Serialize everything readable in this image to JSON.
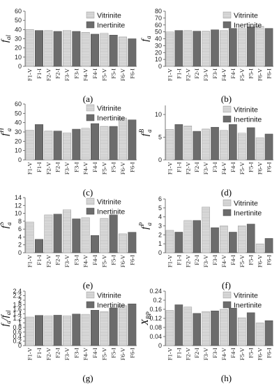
{
  "palette": {
    "vitrinite_fill": "#e3e3e3",
    "vitrinite_hatch": "#ababab",
    "inertinite_fill": "#6c6c6c",
    "axis": "#555555"
  },
  "legend_labels": [
    "Vitrinite",
    "Inertinite"
  ],
  "chart_data": [
    {
      "type": "bar",
      "panel_label": "(a)",
      "ylabel": {
        "main": "f",
        "sub": "al",
        "sup": ""
      },
      "categories": [
        "F1-V",
        "F1-I",
        "F2-V",
        "F2-I",
        "F3-V",
        "F3-I",
        "F4-V",
        "F4-I",
        "F5-V",
        "F5-I",
        "F6-V",
        "F6-I"
      ],
      "values": [
        40,
        39,
        39,
        38,
        39,
        38,
        37,
        35,
        36,
        34,
        32,
        30
      ],
      "ylim": [
        0,
        60
      ],
      "yticks": [
        0,
        10,
        20,
        30,
        40,
        50,
        60
      ],
      "ytick_labels": [
        "0",
        "10",
        "20",
        "30",
        "40",
        "50",
        "60"
      ],
      "series": [
        {
          "name": "Vitrinite"
        },
        {
          "name": "Inertinite"
        }
      ],
      "legend": "top-right",
      "grid": false
    },
    {
      "type": "bar",
      "panel_label": "(b)",
      "ylabel": {
        "main": "f",
        "sub": "a",
        "sup": ""
      },
      "categories": [
        "F1-V",
        "F1-I",
        "F2-V",
        "F2-I",
        "F3-V",
        "F3-I",
        "F4-V",
        "F4-I",
        "F5-V",
        "F5-I",
        "F6-V",
        "F6-I"
      ],
      "values": [
        50,
        52,
        52,
        51,
        51,
        53,
        52,
        55,
        55,
        57,
        58,
        55
      ],
      "ylim": [
        0,
        80
      ],
      "yticks": [
        0,
        10,
        20,
        30,
        40,
        50,
        60,
        70,
        80
      ],
      "ytick_labels": [
        "0",
        "10",
        "20",
        "30",
        "40",
        "50",
        "60",
        "70",
        "80"
      ],
      "series": [
        {
          "name": "Vitrinite"
        },
        {
          "name": "Inertinite"
        }
      ],
      "legend": "top-right",
      "grid": false
    },
    {
      "type": "bar",
      "panel_label": "(c)",
      "ylabel": {
        "main": "f",
        "sub": "a",
        "sup": "H"
      },
      "categories": [
        "F1-V",
        "F1-I",
        "F2-V",
        "F2-I",
        "F3-V",
        "F3-I",
        "F4-V",
        "F4-I",
        "F5-V",
        "F5-I",
        "F6-V",
        "F6-I"
      ],
      "values": [
        32,
        38,
        31,
        31,
        29,
        33,
        34,
        39,
        36,
        36,
        45,
        43
      ],
      "ylim": [
        0,
        60
      ],
      "yticks": [
        0,
        10,
        20,
        30,
        40,
        50,
        60
      ],
      "ytick_labels": [
        "0",
        "10",
        "20",
        "30",
        "40",
        "50",
        "60"
      ],
      "series": [
        {
          "name": "Vitrinite"
        },
        {
          "name": "Inertinite"
        }
      ],
      "legend": "top-right",
      "grid": false
    },
    {
      "type": "bar",
      "panel_label": "(d)",
      "ylabel": {
        "main": "f",
        "sub": "a",
        "sup": "B"
      },
      "categories": [
        "F1-V",
        "F1-I",
        "F2-V",
        "F2-I",
        "F3-V",
        "F3-I",
        "F4-V",
        "F4-I",
        "F5-V",
        "F5-I",
        "F6-V",
        "F6-I"
      ],
      "values": [
        6.7,
        7.8,
        7.5,
        6.3,
        6.8,
        7.2,
        6.5,
        7.8,
        5.9,
        7.1,
        4.9,
        5.7
      ],
      "ylim": [
        0,
        12
      ],
      "yticks": [
        0,
        5,
        10
      ],
      "ytick_labels": [
        "0",
        "5",
        "10"
      ],
      "series": [
        {
          "name": "Vitrinite"
        },
        {
          "name": "Inertinite"
        }
      ],
      "legend": "top-right",
      "grid": false
    },
    {
      "type": "bar",
      "panel_label": "(e)",
      "ylabel": {
        "main": "f",
        "sub": "a",
        "sup": "S"
      },
      "categories": [
        "F1-V",
        "F1-I",
        "F2-V",
        "F2-I",
        "F3-V",
        "F3-I",
        "F4-V",
        "F4-I",
        "F5-V",
        "F5-I",
        "F6-V",
        "F6-I"
      ],
      "values": [
        7.8,
        3.4,
        9.6,
        9.8,
        10.9,
        8.6,
        8.9,
        4.4,
        8.7,
        9.6,
        4.8,
        5.2
      ],
      "ylim": [
        0,
        14
      ],
      "yticks": [
        0,
        2,
        4,
        6,
        8,
        10,
        12,
        14
      ],
      "ytick_labels": [
        "0",
        "2",
        "4",
        "6",
        "8",
        "10",
        "12",
        "14"
      ],
      "series": [
        {
          "name": "Vitrinite"
        },
        {
          "name": "Inertinite"
        }
      ],
      "legend": "top-right",
      "grid": false
    },
    {
      "type": "bar",
      "panel_label": "(f)",
      "ylabel": {
        "main": "f",
        "sub": "a",
        "sup": "P"
      },
      "categories": [
        "F1-V",
        "F1-I",
        "F2-V",
        "F2-I",
        "F3-V",
        "F3-I",
        "F4-V",
        "F4-I",
        "F5-V",
        "F5-I",
        "F6-V",
        "F6-I"
      ],
      "values": [
        2.5,
        2.3,
        3.6,
        3.6,
        5.1,
        2.8,
        3.0,
        2.3,
        3.0,
        3.2,
        1.0,
        1.6
      ],
      "ylim": [
        0,
        6
      ],
      "yticks": [
        0,
        1,
        2,
        3,
        4,
        5,
        6
      ],
      "ytick_labels": [
        "0",
        "1",
        "2",
        "3",
        "4",
        "5",
        "6"
      ],
      "series": [
        {
          "name": "Vitrinite"
        },
        {
          "name": "Inertinite"
        }
      ],
      "legend": "top-right",
      "grid": false
    },
    {
      "type": "bar",
      "panel_label": "(g)",
      "ylabel": {
        "main": "f",
        "sub": "a",
        "sup": "",
        "suffix_main": "/f",
        "suffix_sub": "al"
      },
      "categories": [
        "F1-V",
        "F1-I",
        "F2-V",
        "F2-I",
        "F3-V",
        "F3-I",
        "F4-V",
        "F4-I",
        "F5-V",
        "F5-I",
        "F6-V",
        "F6-I"
      ],
      "values": [
        1.26,
        1.33,
        1.31,
        1.34,
        1.31,
        1.39,
        1.38,
        1.56,
        1.5,
        1.66,
        1.76,
        1.84
      ],
      "ylim": [
        0,
        2.4
      ],
      "yticks": [
        0,
        0.2,
        0.4,
        0.6,
        0.8,
        1.0,
        1.2,
        1.4,
        1.6,
        1.8,
        2.0,
        2.2,
        2.4
      ],
      "ytick_labels": [
        "0",
        "0.2",
        "0.4",
        "0.6",
        "0.8",
        "1",
        "1.2",
        "1.4",
        "1.6",
        "1.8",
        "2",
        "2.2",
        "2.4"
      ],
      "series": [
        {
          "name": "Vitrinite"
        },
        {
          "name": "Inertinite"
        }
      ],
      "legend": "top-right",
      "grid": false
    },
    {
      "type": "bar",
      "panel_label": "(h)",
      "ylabel": {
        "main": "X",
        "sub": "BP",
        "sup": ""
      },
      "categories": [
        "F1-V",
        "F1-I",
        "F2-V",
        "F2-I",
        "F3-V",
        "F3-I",
        "F4-V",
        "F4-I",
        "F5-V",
        "F5-I",
        "F6-V",
        "F6-I"
      ],
      "values": [
        0.155,
        0.18,
        0.17,
        0.142,
        0.15,
        0.153,
        0.16,
        0.165,
        0.123,
        0.145,
        0.1,
        0.11
      ],
      "ylim": [
        0,
        0.24
      ],
      "yticks": [
        0,
        0.04,
        0.08,
        0.12,
        0.16,
        0.2,
        0.24
      ],
      "ytick_labels": [
        "0",
        "0.04",
        "0.08",
        "0.12",
        "0.16",
        "0.2",
        "0.24"
      ],
      "series": [
        {
          "name": "Vitrinite"
        },
        {
          "name": "Inertinite"
        }
      ],
      "legend": "top-right",
      "grid": false
    }
  ]
}
